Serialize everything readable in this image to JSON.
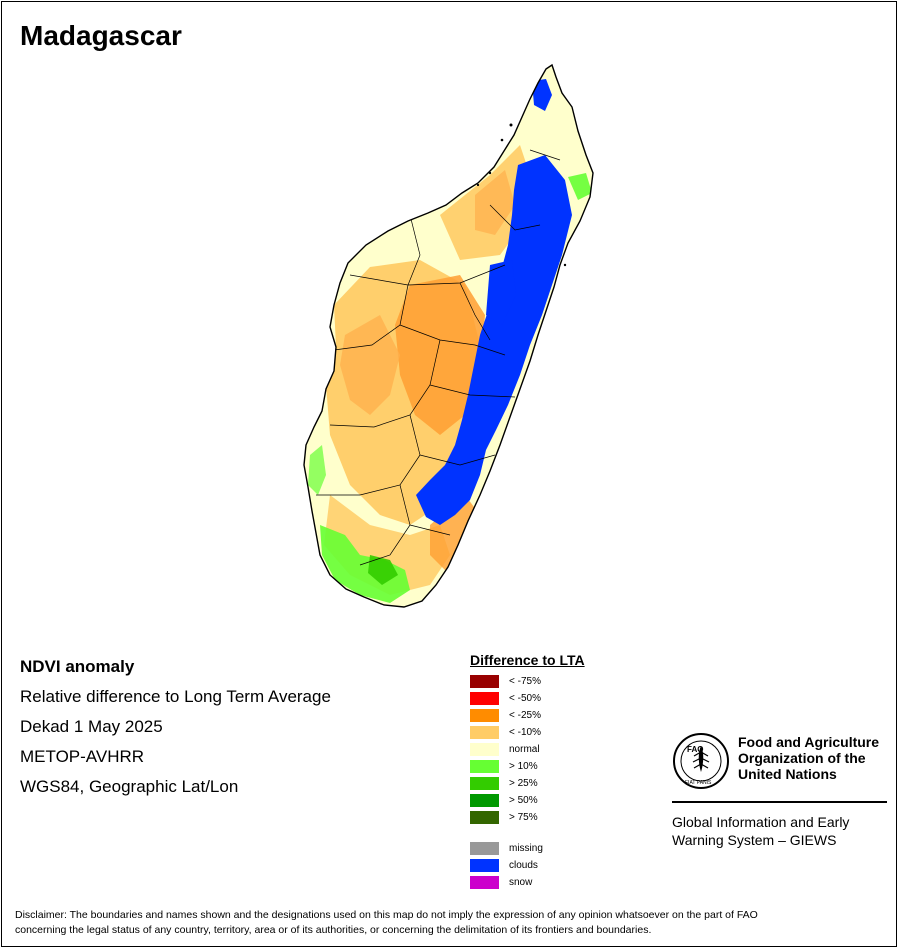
{
  "title": "Madagascar",
  "info": {
    "product": "NDVI anomaly",
    "description": "Relative difference to Long Term Average",
    "period": "Dekad 1 May 2025",
    "sensor": "METOP-AVHRR",
    "projection": "WGS84, Geographic Lat/Lon"
  },
  "legend": {
    "title": "Difference to LTA",
    "classes": [
      {
        "label": "< -75%",
        "color": "#990000"
      },
      {
        "label": "< -50%",
        "color": "#ff0000"
      },
      {
        "label": "< -25%",
        "color": "#ff8c00"
      },
      {
        "label": "< -10%",
        "color": "#ffcc66"
      },
      {
        "label": "normal",
        "color": "#ffffcc"
      },
      {
        "label": "> 10%",
        "color": "#66ff33"
      },
      {
        "label": "> 25%",
        "color": "#33cc00"
      },
      {
        "label": "> 50%",
        "color": "#009900"
      },
      {
        "label": "> 75%",
        "color": "#336600"
      }
    ],
    "other": [
      {
        "label": "missing",
        "color": "#999999"
      },
      {
        "label": "clouds",
        "color": "#0033ff"
      },
      {
        "label": "snow",
        "color": "#cc00cc"
      }
    ]
  },
  "org": {
    "name_line1": "Food and Agriculture",
    "name_line2": "Organization of the",
    "name_line3": "United Nations",
    "system_line1": "Global Information and Early",
    "system_line2": "Warning System – GIEWS",
    "logo_text": "FAO",
    "motto": "FIAT PANIS"
  },
  "disclaimer_line1": "Disclaimer: The boundaries and names shown and the designations used on this map do not imply the expression of any opinion whatsoever on the part of FAO",
  "disclaimer_line2": "concerning the legal status of any country, territory, area or of its authorities, or concerning the delimitation of its frontiers and boundaries."
}
